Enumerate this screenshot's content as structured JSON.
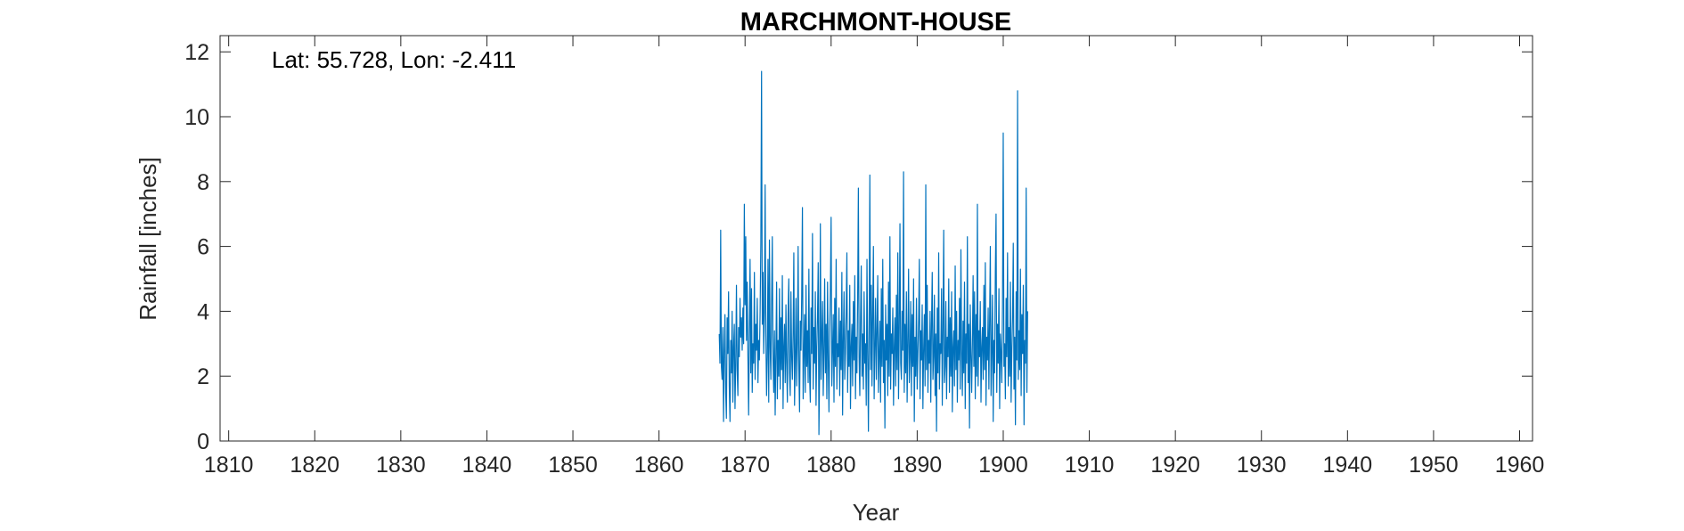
{
  "chart_data": {
    "type": "line",
    "title": "MARCHMONT-HOUSE",
    "annotation": "Lat: 55.728, Lon: -2.411",
    "xlabel": "Year",
    "ylabel": "Rainfall [inches]",
    "xlim": [
      1809,
      1961.5
    ],
    "ylim": [
      0,
      12.5
    ],
    "xticks": [
      1810,
      1820,
      1830,
      1840,
      1850,
      1860,
      1870,
      1880,
      1890,
      1900,
      1910,
      1920,
      1930,
      1940,
      1950,
      1960
    ],
    "yticks": [
      0,
      2,
      4,
      6,
      8,
      10,
      12
    ],
    "grid": false,
    "series": [
      {
        "color": "#0072BD",
        "x_start": 1867.0,
        "x_step": 0.08333,
        "values": [
          3.3,
          2.4,
          6.5,
          2.3,
          1.9,
          3.5,
          0.6,
          2.8,
          3.9,
          1.5,
          0.7,
          3.8,
          2.7,
          4.6,
          1.7,
          0.6,
          3.1,
          2.1,
          4.0,
          1.2,
          2.9,
          3.6,
          1.0,
          2.4,
          4.8,
          2.2,
          1.4,
          3.5,
          2.6,
          4.4,
          3.2,
          3.8,
          2.8,
          4.1,
          3.0,
          7.3,
          4.2,
          6.3,
          3.1,
          4.9,
          2.6,
          0.8,
          3.4,
          5.6,
          2.1,
          4.7,
          1.5,
          3.0,
          2.4,
          5.2,
          1.9,
          3.6,
          2.8,
          4.4,
          1.8,
          3.1,
          2.5,
          4.0,
          6.1,
          11.4,
          3.6,
          5.2,
          2.7,
          4.0,
          7.9,
          3.3,
          1.4,
          2.6,
          5.6,
          1.2,
          6.2,
          2.9,
          1.9,
          4.3,
          6.3,
          2.5,
          1.5,
          3.4,
          0.8,
          2.7,
          4.9,
          1.3,
          3.1,
          2.0,
          4.7,
          1.6,
          3.8,
          2.2,
          5.1,
          1.0,
          2.9,
          3.6,
          1.8,
          4.2,
          2.4,
          1.2,
          3.9,
          5.0,
          2.1,
          1.4,
          4.6,
          2.6,
          1.9,
          3.3,
          5.8,
          1.1,
          2.5,
          4.4,
          1.7,
          3.0,
          6.0,
          2.2,
          0.9,
          3.7,
          2.8,
          4.5,
          7.2,
          1.3,
          2.6,
          3.9,
          1.5,
          4.8,
          2.3,
          3.4,
          1.8,
          5.3,
          2.0,
          1.2,
          4.1,
          2.7,
          6.4,
          1.6,
          3.5,
          2.4,
          4.6,
          1.1,
          2.9,
          3.8,
          5.5,
          0.2,
          2.2,
          6.7,
          1.9,
          3.2,
          4.3,
          1.4,
          2.7,
          5.0,
          2.1,
          3.6,
          1.3,
          4.9,
          2.5,
          0.9,
          3.3,
          4.7,
          6.9,
          1.7,
          2.8,
          3.9,
          1.2,
          4.4,
          2.3,
          5.6,
          1.6,
          3.0,
          2.6,
          4.1,
          1.4,
          3.7,
          2.2,
          5.2,
          0.8,
          3.1,
          4.6,
          1.9,
          2.7,
          4.0,
          5.8,
          1.5,
          3.4,
          2.3,
          4.8,
          1.0,
          2.9,
          3.6,
          1.7,
          4.3,
          2.5,
          5.1,
          1.3,
          3.2,
          2.1,
          4.4,
          7.8,
          2.6,
          1.4,
          3.8,
          5.4,
          2.0,
          3.3,
          1.6,
          4.6,
          2.4,
          3.0,
          1.1,
          5.6,
          2.7,
          0.3,
          3.5,
          8.2,
          2.2,
          4.8,
          1.7,
          3.9,
          6.0,
          1.3,
          2.8,
          4.4,
          1.9,
          3.4,
          5.1,
          1.5,
          2.6,
          3.7,
          1.2,
          4.7,
          2.3,
          5.6,
          1.8,
          3.1,
          0.4,
          4.2,
          2.5,
          3.6,
          1.4,
          4.9,
          2.0,
          6.3,
          1.6,
          3.3,
          2.7,
          4.1,
          1.1,
          2.9,
          3.8,
          1.7,
          4.5,
          2.2,
          5.8,
          1.3,
          3.5,
          6.7,
          2.4,
          1.9,
          4.0,
          2.8,
          8.3,
          1.5,
          3.6,
          2.1,
          4.6,
          1.2,
          3.0,
          5.3,
          1.8,
          2.6,
          4.3,
          1.4,
          3.9,
          2.3,
          5.0,
          0.6,
          3.2,
          2.0,
          4.4,
          1.6,
          2.7,
          3.7,
          5.6,
          1.3,
          3.4,
          2.5,
          4.2,
          1.0,
          2.8,
          3.9,
          1.7,
          7.9,
          2.2,
          4.8,
          1.5,
          3.1,
          2.4,
          4.0,
          1.2,
          3.6,
          5.2,
          1.9,
          2.6,
          4.5,
          1.4,
          3.3,
          0.3,
          4.1,
          2.1,
          5.8,
          1.6,
          3.0,
          2.7,
          4.7,
          1.1,
          3.5,
          6.5,
          1.8,
          2.3,
          4.3,
          1.3,
          3.2,
          2.6,
          5.0,
          1.5,
          3.8,
          2.0,
          4.6,
          0.9,
          2.9,
          3.4,
          1.7,
          5.4,
          2.2,
          4.0,
          1.2,
          3.1,
          2.5,
          4.4,
          1.6,
          5.9,
          2.8,
          1.4,
          3.7,
          2.1,
          4.9,
          1.0,
          3.3,
          2.4,
          6.3,
          1.8,
          3.6,
          0.4,
          4.2,
          2.7,
          1.5,
          3.0,
          5.1,
          2.3,
          4.6,
          1.3,
          3.9,
          2.0,
          7.3,
          1.7,
          3.4,
          2.6,
          4.3,
          1.2,
          2.9,
          3.5,
          1.9,
          4.8,
          2.2,
          5.5,
          1.1,
          3.2,
          2.5,
          4.1,
          1.6,
          3.7,
          6.0,
          1.4,
          2.8,
          4.5,
          0.6,
          3.1,
          2.1,
          5.2,
          7.0,
          1.5,
          3.6,
          2.4,
          4.7,
          1.0,
          3.3,
          2.7,
          1.8,
          4.2,
          9.5,
          2.3,
          3.0,
          1.3,
          4.4,
          2.6,
          5.8,
          1.7,
          3.5,
          2.0,
          4.9,
          1.2,
          2.8,
          3.8,
          6.1,
          1.6,
          3.2,
          0.5,
          4.6,
          2.5,
          10.8,
          1.9,
          3.4,
          2.2,
          5.3,
          1.4,
          3.9,
          2.7,
          4.8,
          0.5,
          3.1,
          2.4,
          7.8,
          1.5,
          4.0
        ]
      }
    ]
  }
}
